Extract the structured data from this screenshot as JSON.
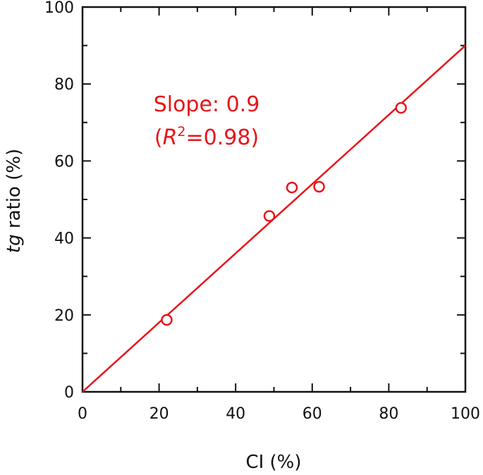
{
  "chart_data": {
    "type": "scatter",
    "title": "",
    "xlabel": "CI (%)",
    "ylabel": {
      "italic": "tg",
      "rest": " ratio (%)"
    },
    "xlim": [
      0,
      100
    ],
    "ylim": [
      0,
      100
    ],
    "xticks": [
      0,
      20,
      40,
      60,
      80,
      100
    ],
    "yticks": [
      0,
      20,
      40,
      60,
      80,
      100
    ],
    "grid": false,
    "colors": {
      "series": "#e8141a",
      "axis": "#111111"
    },
    "points": [
      {
        "x": 22,
        "y": 18.7
      },
      {
        "x": 48.8,
        "y": 45.7
      },
      {
        "x": 54.7,
        "y": 53.1
      },
      {
        "x": 61.8,
        "y": 53.3
      },
      {
        "x": 83.2,
        "y": 73.8
      }
    ],
    "fit_line": {
      "slope": 0.9,
      "intercept": 0
    },
    "annotation": {
      "line1": "Slope: 0.9",
      "line2_open": "(",
      "line2_r": "R",
      "line2_sup": "2",
      "line2_rest": "=0.98)"
    }
  }
}
